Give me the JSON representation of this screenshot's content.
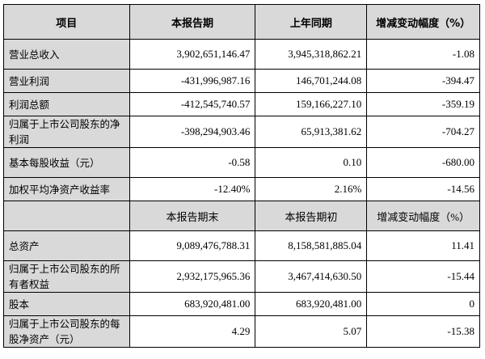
{
  "header": [
    "项目",
    "本报告期",
    "上年同期",
    "增减变动幅度（%）"
  ],
  "rows": [
    [
      "营业总收入",
      "3,902,651,146.47",
      "3,945,318,862.21",
      "-1.08"
    ],
    [
      "营业利润",
      "-431,996,987.16",
      "146,701,244.08",
      "-394.47"
    ],
    [
      "利润总额",
      "-412,545,740.57",
      "159,166,227.10",
      "-359.19"
    ],
    [
      "归属于上市公司股东的净利润",
      "-398,294,903.46",
      "65,913,381.62",
      "-704.27"
    ],
    [
      "基本每股收益（元）",
      "-0.58",
      "0.10",
      "-680.00"
    ],
    [
      "加权平均净资产收益率",
      "-12.40%",
      "2.16%",
      "-14.56"
    ]
  ],
  "header2": [
    "",
    "本报告期末",
    "本报告期初",
    "增减变动幅度（%）"
  ],
  "rows2": [
    [
      "总资产",
      "9,089,476,788.31",
      "8,158,581,885.04",
      "11.41"
    ],
    [
      "归属于上市公司股东的所有者权益",
      "2,932,175,965.36",
      "3,467,414,630.50",
      "-15.44"
    ],
    [
      "股本",
      "683,920,481.00",
      "683,920,481.00",
      "0"
    ],
    [
      "归属于上市公司股东的每股净资产（元）",
      "4.29",
      "5.07",
      "-15.38"
    ]
  ]
}
